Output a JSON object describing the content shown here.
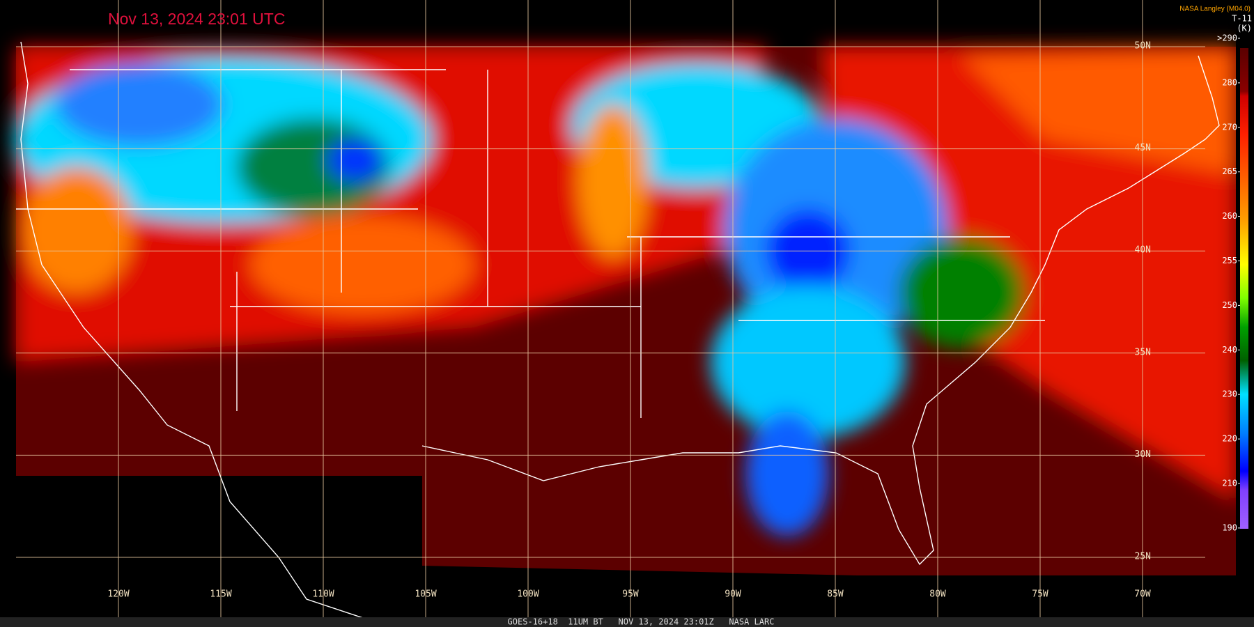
{
  "header": {
    "title": "Nov 13, 2024 23:01 UTC",
    "credit": "NASA Langley (M04.0)"
  },
  "colorbar": {
    "title": "T-11",
    "unit": "(K)",
    "ticks": [
      {
        "value": 290,
        "label": ">290"
      },
      280,
      270,
      265,
      260,
      255,
      250,
      240,
      230,
      220,
      210,
      190
    ]
  },
  "grid": {
    "lon_labels": [
      "120W",
      "115W",
      "110W",
      "105W",
      "100W",
      "95W",
      "90W",
      "85W",
      "80W",
      "75W",
      "70W"
    ],
    "lat_labels": [
      "50N",
      "45N",
      "40N",
      "35N",
      "30N",
      "25N"
    ]
  },
  "footer": "GOES-16+18  11UM BT   NOV 13, 2024 23:01Z   NASA LARC"
}
